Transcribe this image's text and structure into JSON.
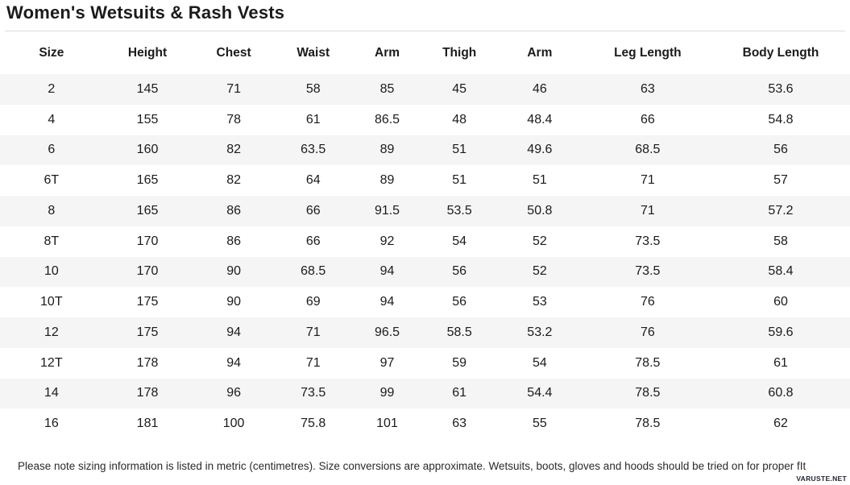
{
  "title": "Women's Wetsuits & Rash Vests",
  "table": {
    "columns": [
      "Size",
      "Height",
      "Chest",
      "Waist",
      "Arm",
      "Thigh",
      "Arm",
      "Leg Length",
      "Body Length"
    ],
    "rows": [
      [
        "2",
        "145",
        "71",
        "58",
        "85",
        "45",
        "46",
        "63",
        "53.6"
      ],
      [
        "4",
        "155",
        "78",
        "61",
        "86.5",
        "48",
        "48.4",
        "66",
        "54.8"
      ],
      [
        "6",
        "160",
        "82",
        "63.5",
        "89",
        "51",
        "49.6",
        "68.5",
        "56"
      ],
      [
        "6T",
        "165",
        "82",
        "64",
        "89",
        "51",
        "51",
        "71",
        "57"
      ],
      [
        "8",
        "165",
        "86",
        "66",
        "91.5",
        "53.5",
        "50.8",
        "71",
        "57.2"
      ],
      [
        "8T",
        "170",
        "86",
        "66",
        "92",
        "54",
        "52",
        "73.5",
        "58"
      ],
      [
        "10",
        "170",
        "90",
        "68.5",
        "94",
        "56",
        "52",
        "73.5",
        "58.4"
      ],
      [
        "10T",
        "175",
        "90",
        "69",
        "94",
        "56",
        "53",
        "76",
        "60"
      ],
      [
        "12",
        "175",
        "94",
        "71",
        "96.5",
        "58.5",
        "53.2",
        "76",
        "59.6"
      ],
      [
        "12T",
        "178",
        "94",
        "71",
        "97",
        "59",
        "54",
        "78.5",
        "61"
      ],
      [
        "14",
        "178",
        "96",
        "73.5",
        "99",
        "61",
        "54.4",
        "78.5",
        "60.8"
      ],
      [
        "16",
        "181",
        "100",
        "75.8",
        "101",
        "63",
        "55",
        "78.5",
        "62"
      ]
    ]
  },
  "footer": {
    "note": "Please note sizing information is listed in metric (centimetres). Size conversions are approximate. Wetsuits, boots, gloves and hoods should be tried on for proper fIt"
  },
  "watermark": "VARUSTE.NET",
  "colors": {
    "stripe": "#f5f5f6",
    "text": "#1b1b1b",
    "divider": "#dcdcdc"
  }
}
